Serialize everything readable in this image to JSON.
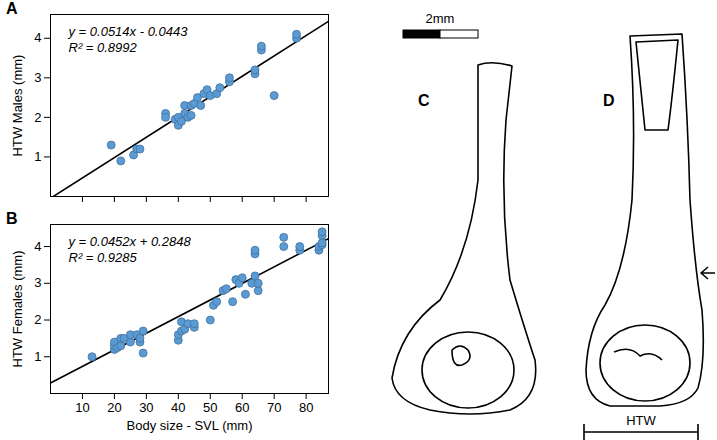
{
  "chart_data": [
    {
      "type": "scatter",
      "title": "A",
      "y_label": "HTW Males (mm)",
      "x": [
        19,
        22,
        26,
        27,
        28,
        36,
        36,
        39,
        40,
        40,
        41,
        42,
        42,
        43,
        44,
        44,
        45,
        46,
        47,
        48,
        49,
        50,
        52,
        53,
        56,
        56,
        64,
        64,
        66,
        66,
        70,
        77,
        77
      ],
      "values": [
        1.3,
        0.9,
        1.05,
        1.2,
        1.2,
        2.1,
        2.0,
        1.95,
        1.8,
        2.0,
        1.9,
        2.1,
        2.3,
        2.0,
        2.05,
        2.3,
        2.35,
        2.5,
        2.3,
        2.6,
        2.7,
        2.55,
        2.6,
        2.75,
        2.9,
        3.0,
        3.1,
        3.2,
        3.7,
        3.8,
        2.55,
        4.0,
        4.1
      ],
      "color": "#5b9bd5",
      "marker": "circle",
      "fit": {
        "slope": 0.0514,
        "intercept": -0.0443
      },
      "annotations": [
        "y = 0.0514x - 0.0443",
        "R² = 0.8992"
      ],
      "xlim": [
        0,
        87
      ],
      "xticks": [
        10,
        20,
        30,
        40,
        50,
        60,
        70,
        80
      ],
      "ylim": [
        0,
        4.6
      ],
      "yticks": [
        1,
        2,
        3,
        4
      ],
      "grid": false,
      "tick_labels": "y"
    },
    {
      "type": "scatter",
      "title": "B",
      "y_label": "HTW Females (mm)",
      "x_label": "Body size - SVL (mm)",
      "x": [
        13,
        20,
        20,
        20,
        21,
        22,
        22,
        23,
        25,
        25,
        27,
        28,
        28,
        29,
        29,
        40,
        40,
        41,
        41,
        42,
        43,
        45,
        45,
        50,
        51,
        52,
        54,
        55,
        57,
        58,
        59,
        60,
        61,
        63,
        64,
        64,
        64,
        65,
        65,
        73,
        73,
        78,
        78,
        84,
        84,
        85,
        85,
        85,
        85
      ],
      "values": [
        1.0,
        1.2,
        1.3,
        1.4,
        1.25,
        1.3,
        1.5,
        1.5,
        1.4,
        1.6,
        1.6,
        1.4,
        1.5,
        1.7,
        1.1,
        1.45,
        1.6,
        1.7,
        1.95,
        1.75,
        1.9,
        1.8,
        1.9,
        2.0,
        2.4,
        2.5,
        2.8,
        2.85,
        2.5,
        3.1,
        3.0,
        3.15,
        2.7,
        3.0,
        3.2,
        3.8,
        3.9,
        2.8,
        3.0,
        4.0,
        4.25,
        3.9,
        4.0,
        3.9,
        4.0,
        4.05,
        4.3,
        4.4,
        4.1
      ],
      "color": "#5b9bd5",
      "marker": "circle",
      "fit": {
        "slope": 0.0452,
        "intercept": 0.2848
      },
      "annotations": [
        "y = 0.0452x + 0.2848",
        "R² = 0.9285"
      ],
      "xlim": [
        0,
        87
      ],
      "xticks": [
        10,
        20,
        30,
        40,
        50,
        60,
        70,
        80
      ],
      "ylim": [
        0,
        4.6
      ],
      "yticks": [
        1,
        2,
        3,
        4
      ],
      "grid": false
    }
  ],
  "illustration": {
    "scale_bar": "2mm",
    "panels": [
      {
        "label": "C"
      },
      {
        "label": "D",
        "measure": "HTW"
      }
    ]
  }
}
